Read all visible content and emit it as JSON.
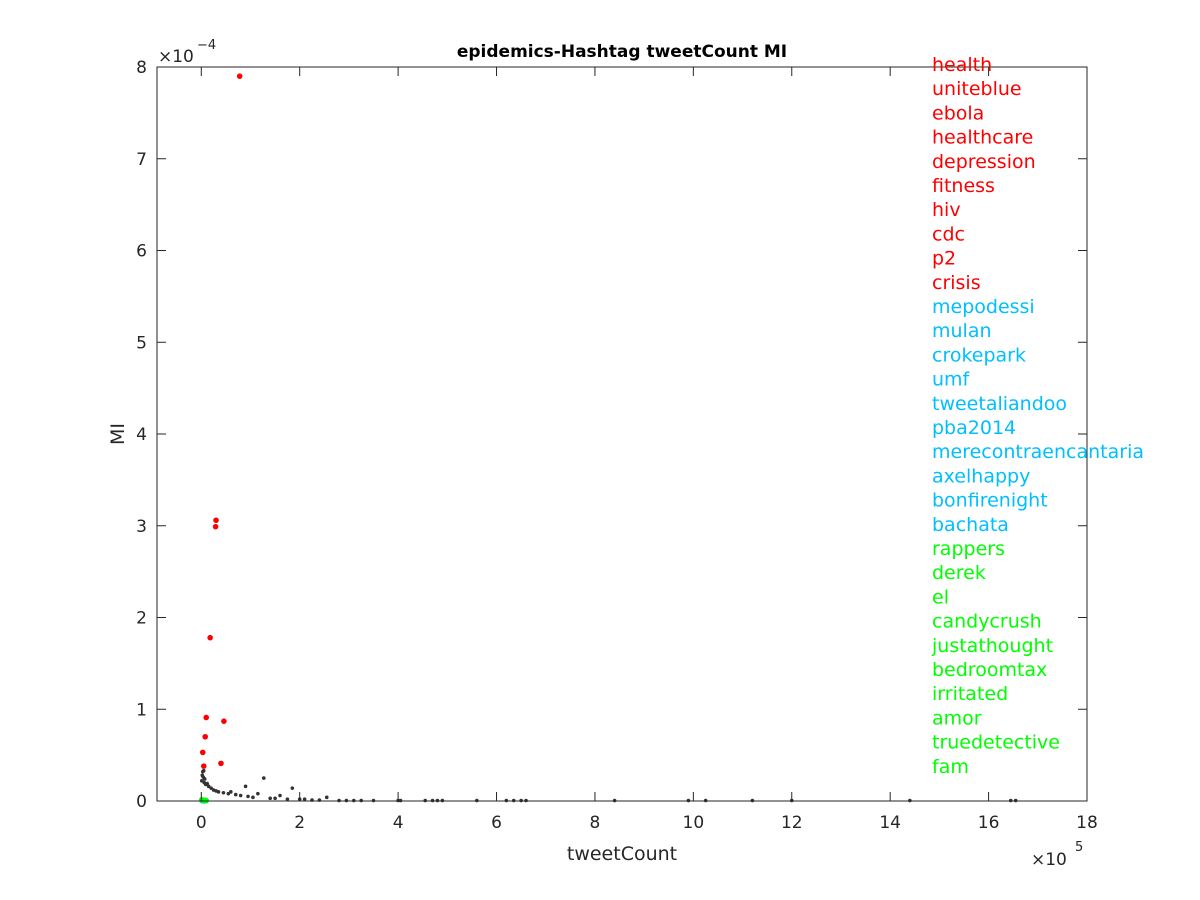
{
  "colors": {
    "background": "#ffffff",
    "axis": "#262626",
    "top_hashtags": "#ff0000",
    "middle_hashtags": "#00bfff",
    "bottom_hashtags": "#00ff00",
    "other_points": "#333333"
  },
  "chart_data": {
    "type": "scatter",
    "title": "epidemics-Hashtag tweetCount MI",
    "xlabel": "tweetCount",
    "ylabel": "MI",
    "x_scale_label": {
      "base": "×10",
      "exponent": "5"
    },
    "y_scale_label": {
      "base": "×10",
      "exponent": "−4"
    },
    "xlim": [
      -90000,
      1800000
    ],
    "ylim": [
      0,
      0.0008
    ],
    "x_ticks": [
      0,
      200000,
      400000,
      600000,
      800000,
      1000000,
      1200000,
      1400000,
      1600000,
      1800000
    ],
    "x_tick_labels": [
      "0",
      "2",
      "4",
      "6",
      "8",
      "10",
      "12",
      "14",
      "16",
      "18"
    ],
    "y_ticks": [
      0,
      0.0001,
      0.0002,
      0.0003,
      0.0004,
      0.0005,
      0.0006,
      0.0007,
      0.0008
    ],
    "y_tick_labels": [
      "0",
      "1",
      "2",
      "3",
      "4",
      "5",
      "6",
      "7",
      "8"
    ],
    "grid": false,
    "legend_position": "right",
    "legend": [
      {
        "label": "health",
        "group": "top"
      },
      {
        "label": "uniteblue",
        "group": "top"
      },
      {
        "label": "ebola",
        "group": "top"
      },
      {
        "label": "healthcare",
        "group": "top"
      },
      {
        "label": "depression",
        "group": "top"
      },
      {
        "label": "fitness",
        "group": "top"
      },
      {
        "label": "hiv",
        "group": "top"
      },
      {
        "label": "cdc",
        "group": "top"
      },
      {
        "label": "p2",
        "group": "top"
      },
      {
        "label": "crisis",
        "group": "top"
      },
      {
        "label": "mepodessi",
        "group": "middle"
      },
      {
        "label": "mulan",
        "group": "middle"
      },
      {
        "label": "crokepark",
        "group": "middle"
      },
      {
        "label": "umf",
        "group": "middle"
      },
      {
        "label": "tweetaliandoo",
        "group": "middle"
      },
      {
        "label": "pba2014",
        "group": "middle"
      },
      {
        "label": "merecontraencantaria",
        "group": "middle"
      },
      {
        "label": "axelhappy",
        "group": "middle"
      },
      {
        "label": "bonfirenight",
        "group": "middle"
      },
      {
        "label": "bachata",
        "group": "middle"
      },
      {
        "label": "rappers",
        "group": "bottom"
      },
      {
        "label": "derek",
        "group": "bottom"
      },
      {
        "label": "el",
        "group": "bottom"
      },
      {
        "label": "candycrush",
        "group": "bottom"
      },
      {
        "label": "justathought",
        "group": "bottom"
      },
      {
        "label": "bedroomtax",
        "group": "bottom"
      },
      {
        "label": "irritated",
        "group": "bottom"
      },
      {
        "label": "amor",
        "group": "bottom"
      },
      {
        "label": "truedetective",
        "group": "bottom"
      },
      {
        "label": "fam",
        "group": "bottom"
      }
    ],
    "series": [
      {
        "group": "top",
        "points": [
          [
            78000,
            0.00079
          ],
          [
            30000,
            0.000306
          ],
          [
            29000,
            0.000299
          ],
          [
            18000,
            0.000178
          ],
          [
            10000,
            9.1e-05
          ],
          [
            46000,
            8.7e-05
          ],
          [
            8000,
            7e-05
          ],
          [
            3000,
            5.3e-05
          ],
          [
            40000,
            4.1e-05
          ],
          [
            5000,
            3.8e-05
          ]
        ]
      },
      {
        "group": "middle",
        "points": [
          [
            1500,
            5e-07
          ],
          [
            2000,
            5e-07
          ],
          [
            2500,
            4e-07
          ],
          [
            3000,
            4e-07
          ],
          [
            3500,
            4e-07
          ],
          [
            4000,
            3e-07
          ],
          [
            4500,
            3e-07
          ],
          [
            5000,
            3e-07
          ],
          [
            5500,
            2e-07
          ],
          [
            6000,
            2e-07
          ]
        ]
      },
      {
        "group": "bottom",
        "points": [
          [
            1000,
            1.2e-06
          ],
          [
            2000,
            1.1e-06
          ],
          [
            3000,
            1e-06
          ],
          [
            4000,
            9e-07
          ],
          [
            5000,
            8e-07
          ],
          [
            6000,
            8e-07
          ],
          [
            7000,
            7e-07
          ],
          [
            8000,
            6e-07
          ],
          [
            9000,
            5e-07
          ],
          [
            10000,
            4e-07
          ]
        ]
      },
      {
        "group": "other",
        "points": [
          [
            127000,
            2.5e-05
          ],
          [
            185000,
            1.4e-05
          ],
          [
            90000,
            1.6e-05
          ],
          [
            60000,
            1e-05
          ],
          [
            115000,
            8e-06
          ],
          [
            160000,
            6e-06
          ],
          [
            5000,
            3.3e-05
          ],
          [
            3000,
            3.2e-05
          ],
          [
            2000,
            2.8e-05
          ],
          [
            4000,
            2.6e-05
          ],
          [
            7000,
            2.4e-05
          ],
          [
            1000,
            2.2e-05
          ],
          [
            6000,
            2e-05
          ],
          [
            12000,
            1.9e-05
          ],
          [
            9000,
            1.8e-05
          ],
          [
            15000,
            1.6e-05
          ],
          [
            20000,
            1.4e-05
          ],
          [
            25000,
            1.2e-05
          ],
          [
            30000,
            1.1e-05
          ],
          [
            35000,
            1e-05
          ],
          [
            45000,
            9e-06
          ],
          [
            55000,
            8e-06
          ],
          [
            70000,
            7e-06
          ],
          [
            80000,
            6e-06
          ],
          [
            95000,
            5e-06
          ],
          [
            105000,
            4e-06
          ],
          [
            140000,
            3e-06
          ],
          [
            150000,
            3e-06
          ],
          [
            175000,
            2e-06
          ],
          [
            200000,
            2e-06
          ],
          [
            210000,
            2e-06
          ],
          [
            225000,
            1e-06
          ],
          [
            240000,
            1e-06
          ],
          [
            255000,
            4e-06
          ],
          [
            280000,
            5e-07
          ],
          [
            295000,
            5e-07
          ],
          [
            310000,
            5e-07
          ],
          [
            325000,
            5e-07
          ],
          [
            350000,
            5e-07
          ],
          [
            400000,
            5e-07
          ],
          [
            405000,
            5e-07
          ],
          [
            455000,
            5e-07
          ],
          [
            470000,
            5e-07
          ],
          [
            480000,
            5e-07
          ],
          [
            490000,
            5e-07
          ],
          [
            560000,
            5e-07
          ],
          [
            620000,
            5e-07
          ],
          [
            635000,
            5e-07
          ],
          [
            650000,
            5e-07
          ],
          [
            660000,
            5e-07
          ],
          [
            840000,
            5e-07
          ],
          [
            990000,
            5e-07
          ],
          [
            1025000,
            5e-07
          ],
          [
            1120000,
            5e-07
          ],
          [
            1200000,
            5e-07
          ],
          [
            1440000,
            5e-07
          ],
          [
            1645000,
            5e-07
          ],
          [
            1655000,
            5e-07
          ]
        ]
      }
    ]
  }
}
